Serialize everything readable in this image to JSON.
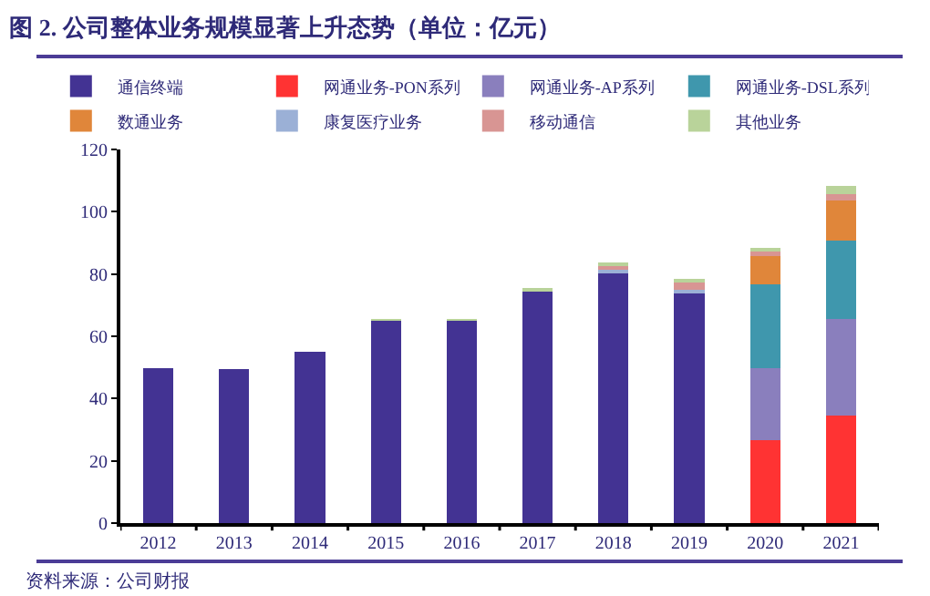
{
  "chart_data": {
    "type": "bar",
    "title": "图 2. 公司整体业务规模显著上升态势（单位：亿元）",
    "stacked": true,
    "categories": [
      "2012",
      "2013",
      "2014",
      "2015",
      "2016",
      "2017",
      "2018",
      "2019",
      "2020",
      "2021"
    ],
    "series": [
      {
        "name": "通信终端",
        "color": "#433393",
        "values": [
          49.7,
          49.4,
          55,
          65,
          65,
          74.8,
          80.6,
          74.2,
          null,
          null
        ]
      },
      {
        "name": "网通业务-PON系列",
        "color": "#ff3333",
        "values": [
          null,
          null,
          null,
          null,
          null,
          null,
          null,
          null,
          26.6,
          34.5
        ]
      },
      {
        "name": "网通业务-AP系列",
        "color": "#8a7fbd",
        "values": [
          null,
          null,
          null,
          null,
          null,
          null,
          null,
          null,
          23.2,
          31.1
        ]
      },
      {
        "name": "网通业务-DSL系列",
        "color": "#3f97ad",
        "values": [
          null,
          null,
          null,
          null,
          null,
          null,
          null,
          null,
          26.8,
          25.2
        ]
      },
      {
        "name": "数通业务",
        "color": "#e0863a",
        "values": [
          null,
          null,
          null,
          null,
          null,
          null,
          null,
          null,
          9.2,
          12.7
        ]
      },
      {
        "name": "康复医疗业务",
        "color": "#9bb0d6",
        "values": [
          null,
          null,
          null,
          null,
          null,
          null,
          0.7,
          0.6,
          null,
          null
        ]
      },
      {
        "name": "移动通信",
        "color": "#d89593",
        "values": [
          null,
          null,
          null,
          null,
          null,
          null,
          1.4,
          2.4,
          1.3,
          2.3
        ]
      },
      {
        "name": "其他业务",
        "color": "#b9d39a",
        "values": [
          null,
          null,
          null,
          0.4,
          0.4,
          0.6,
          0.5,
          1.3,
          1.3,
          2.4
        ]
      }
    ],
    "ylim": [
      0,
      120
    ],
    "yticks": [
      0,
      20,
      40,
      60,
      80,
      100,
      120
    ],
    "grid": false,
    "legend": "top",
    "annotations": [
      "资料来源：公司财报"
    ]
  }
}
